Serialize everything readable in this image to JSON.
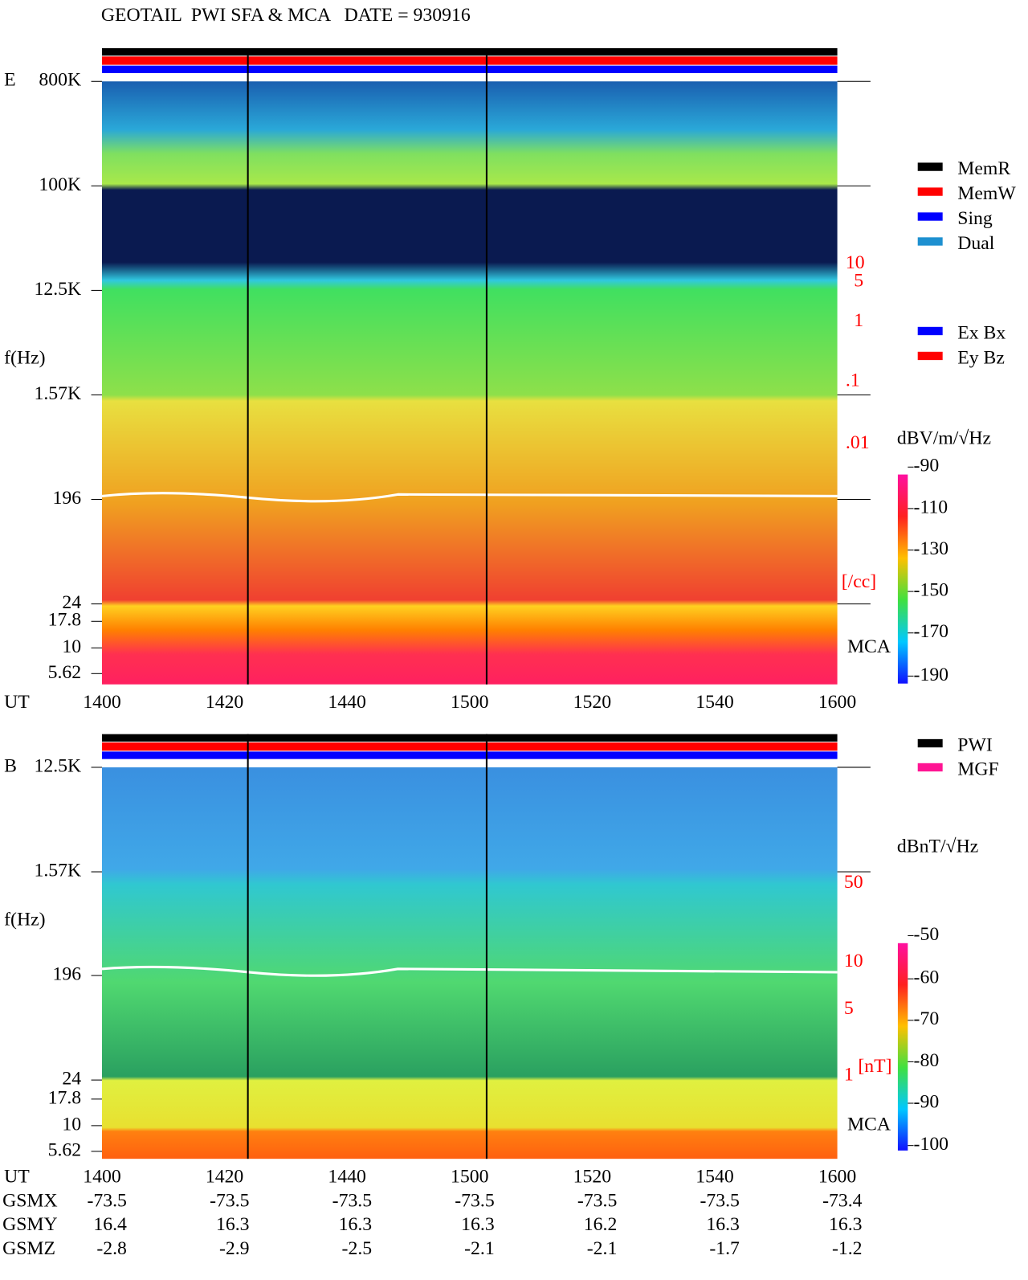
{
  "header": {
    "title": "GEOTAIL  PWI SFA & MCA   DATE = 930916"
  },
  "panels": [
    {
      "name": "E",
      "y_label": "f(Hz)",
      "y_ticks": [
        "800K",
        "100K",
        "12.5K",
        "1.57K",
        "196",
        "24",
        "17.8",
        "10",
        "5.62"
      ],
      "x_label": "UT",
      "x_ticks": [
        "1400",
        "1420",
        "1440",
        "1500",
        "1520",
        "1540",
        "1600"
      ],
      "right_labels": [
        "10",
        "5",
        "1",
        ".1",
        ".01",
        "[/cc]"
      ],
      "mca_label": "MCA",
      "colorbar": {
        "label": "dBV/m/√Hz",
        "ticks": [
          "-90",
          "-110",
          "-130",
          "-150",
          "-170",
          "-190"
        ]
      }
    },
    {
      "name": "B",
      "y_label": "f(Hz)",
      "y_ticks": [
        "12.5K",
        "1.57K",
        "196",
        "24",
        "17.8",
        "10",
        "5.62"
      ],
      "x_label": "UT",
      "x_ticks": [
        "1400",
        "1420",
        "1440",
        "1500",
        "1520",
        "1540",
        "1600"
      ],
      "right_labels": [
        "50",
        "10",
        "5",
        "1",
        "[nT]"
      ],
      "mca_label": "MCA",
      "colorbar": {
        "label": "dBnT/√Hz",
        "ticks": [
          "-50",
          "-60",
          "-70",
          "-80",
          "-90",
          "-100"
        ]
      }
    }
  ],
  "legend": {
    "mode": [
      {
        "label": "MemR",
        "color": "#000000"
      },
      {
        "label": "MemW",
        "color": "#ff0000"
      },
      {
        "label": "Sing",
        "color": "#0000ff"
      },
      {
        "label": "Dual",
        "color": "#1e90d0"
      }
    ],
    "antenna": [
      {
        "label": "Ex Bx",
        "color": "#0000ff"
      },
      {
        "label": "Ey Bz",
        "color": "#ff0000"
      }
    ],
    "source": [
      {
        "label": "PWI",
        "color": "#000000"
      },
      {
        "label": "MGF",
        "color": "#ff1493"
      }
    ]
  },
  "orbit": {
    "rows": [
      {
        "label": "GSMX",
        "values": [
          "-73.5",
          "-73.5",
          "-73.5",
          "-73.5",
          "-73.5",
          "-73.5",
          "-73.4"
        ]
      },
      {
        "label": "GSMY",
        "values": [
          "16.4",
          "16.3",
          "16.3",
          "16.3",
          "16.2",
          "16.3",
          "16.3"
        ]
      },
      {
        "label": "GSMZ",
        "values": [
          "-2.8",
          "-2.9",
          "-2.5",
          "-2.1",
          "-2.1",
          "-1.7",
          "-1.2"
        ]
      }
    ]
  }
}
